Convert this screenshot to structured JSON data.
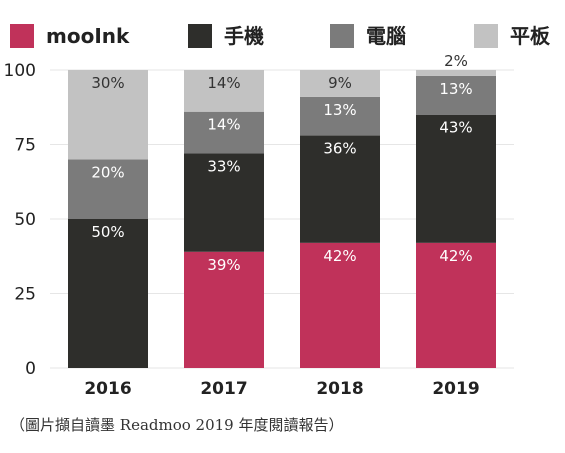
{
  "chart_data": {
    "type": "bar",
    "stacked": true,
    "categories": [
      "2016",
      "2017",
      "2018",
      "2019"
    ],
    "series": [
      {
        "name": "mooInk",
        "color": "#c0325a",
        "values": [
          0,
          39,
          42,
          42
        ],
        "labels": [
          "",
          "39%",
          "42%",
          "42%"
        ]
      },
      {
        "name": "手機",
        "color": "#2e2e2b",
        "values": [
          50,
          33,
          36,
          43
        ],
        "labels": [
          "50%",
          "33%",
          "36%",
          "43%"
        ]
      },
      {
        "name": "電腦",
        "color": "#7b7b7b",
        "values": [
          20,
          14,
          13,
          13
        ],
        "labels": [
          "20%",
          "14%",
          "13%",
          "13%"
        ]
      },
      {
        "name": "平板",
        "color": "#c2c2c2",
        "values": [
          30,
          14,
          9,
          2
        ],
        "labels": [
          "30%",
          "14%",
          "9%",
          "2%"
        ]
      }
    ],
    "ylim": [
      0,
      100
    ],
    "yticks": [
      0,
      25,
      50,
      75,
      100
    ],
    "grid": true,
    "legend": "top"
  },
  "caption": "（圖片擷自讀墨 Readmoo 2019 年度閱讀報告）"
}
